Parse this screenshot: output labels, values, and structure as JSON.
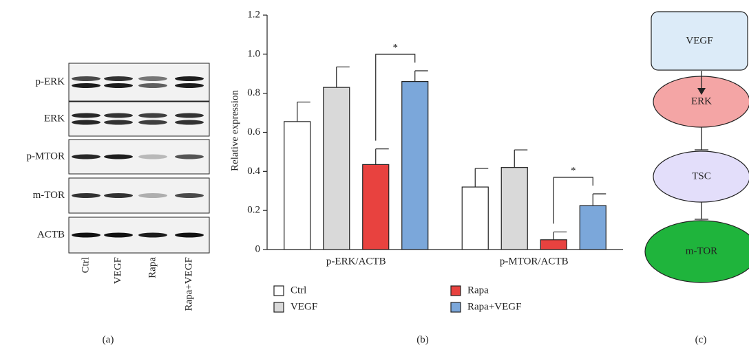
{
  "chart_data": {
    "type": "bar",
    "ylabel": "Relative expression",
    "categories": [
      "p-ERK/ACTB",
      "p-MTOR/ACTB"
    ],
    "series": [
      {
        "name": "Ctrl",
        "color": "#ffffff",
        "values": [
          0.655,
          0.32
        ],
        "errors": [
          0.1,
          0.095
        ]
      },
      {
        "name": "VEGF",
        "color": "#d9d9d9",
        "values": [
          0.83,
          0.42
        ],
        "errors": [
          0.105,
          0.09
        ]
      },
      {
        "name": "Rapa",
        "color": "#e8423f",
        "values": [
          0.435,
          0.05
        ],
        "errors": [
          0.08,
          0.04
        ]
      },
      {
        "name": "Rapa+VEGF",
        "color": "#7ba7da",
        "values": [
          0.86,
          0.225
        ],
        "errors": [
          0.055,
          0.06
        ]
      }
    ],
    "ylim": [
      0,
      1.2
    ],
    "yticks": [
      0,
      0.2,
      0.4,
      0.6,
      0.8,
      {
        "value": 1,
        "label": "1.0"
      },
      1.2
    ],
    "significance": [
      {
        "category": 0,
        "from": 2,
        "to": 3,
        "label": "*"
      },
      {
        "category": 1,
        "from": 2,
        "to": 3,
        "label": "*"
      }
    ]
  },
  "blot": {
    "rows": [
      "p-ERK",
      "ERK",
      "p-MTOR",
      "m-TOR",
      "ACTB"
    ],
    "lanes": [
      "Ctrl",
      "VEGF",
      "Rapa",
      "Rapa+VEGF"
    ]
  },
  "diagram": {
    "nodes": [
      {
        "label": "VEGF"
      },
      {
        "label": "ERK"
      },
      {
        "label": "TSC"
      },
      {
        "label": "m-TOR"
      }
    ]
  },
  "panel_labels": [
    "(a)",
    "(b)",
    "(c)"
  ]
}
